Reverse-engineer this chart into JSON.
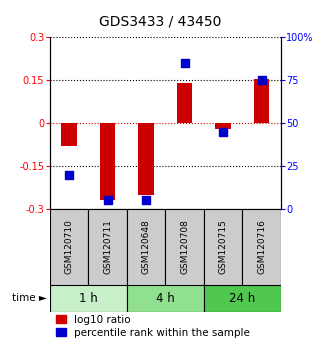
{
  "title": "GDS3433 / 43450",
  "samples": [
    "GSM120710",
    "GSM120711",
    "GSM120648",
    "GSM120708",
    "GSM120715",
    "GSM120716"
  ],
  "log10_ratio": [
    -0.08,
    -0.27,
    -0.25,
    0.14,
    -0.02,
    0.155
  ],
  "percentile_rank": [
    20,
    5,
    5,
    85,
    45,
    75
  ],
  "ylim_left": [
    -0.3,
    0.3
  ],
  "ylim_right": [
    0,
    100
  ],
  "yticks_left": [
    -0.3,
    -0.15,
    0,
    0.15,
    0.3
  ],
  "yticks_right": [
    0,
    25,
    50,
    75,
    100
  ],
  "ytick_labels_right": [
    "0",
    "25",
    "50",
    "75",
    "100%"
  ],
  "time_groups": [
    {
      "label": "1 h",
      "start": 0,
      "end": 2,
      "color": "#c8f0c8"
    },
    {
      "label": "4 h",
      "start": 2,
      "end": 4,
      "color": "#90e090"
    },
    {
      "label": "24 h",
      "start": 4,
      "end": 6,
      "color": "#50c850"
    }
  ],
  "bar_color": "#cc0000",
  "dot_color": "#0000cc",
  "bar_width": 0.4,
  "dot_size": 35,
  "hline_color": "#cc0000",
  "grid_color": "#000000",
  "bg_color": "#ffffff",
  "sample_box_color": "#cccccc",
  "title_fontsize": 10,
  "tick_fontsize": 7,
  "label_fontsize": 6.5,
  "legend_fontsize": 7.5,
  "time_fontsize": 8.5
}
